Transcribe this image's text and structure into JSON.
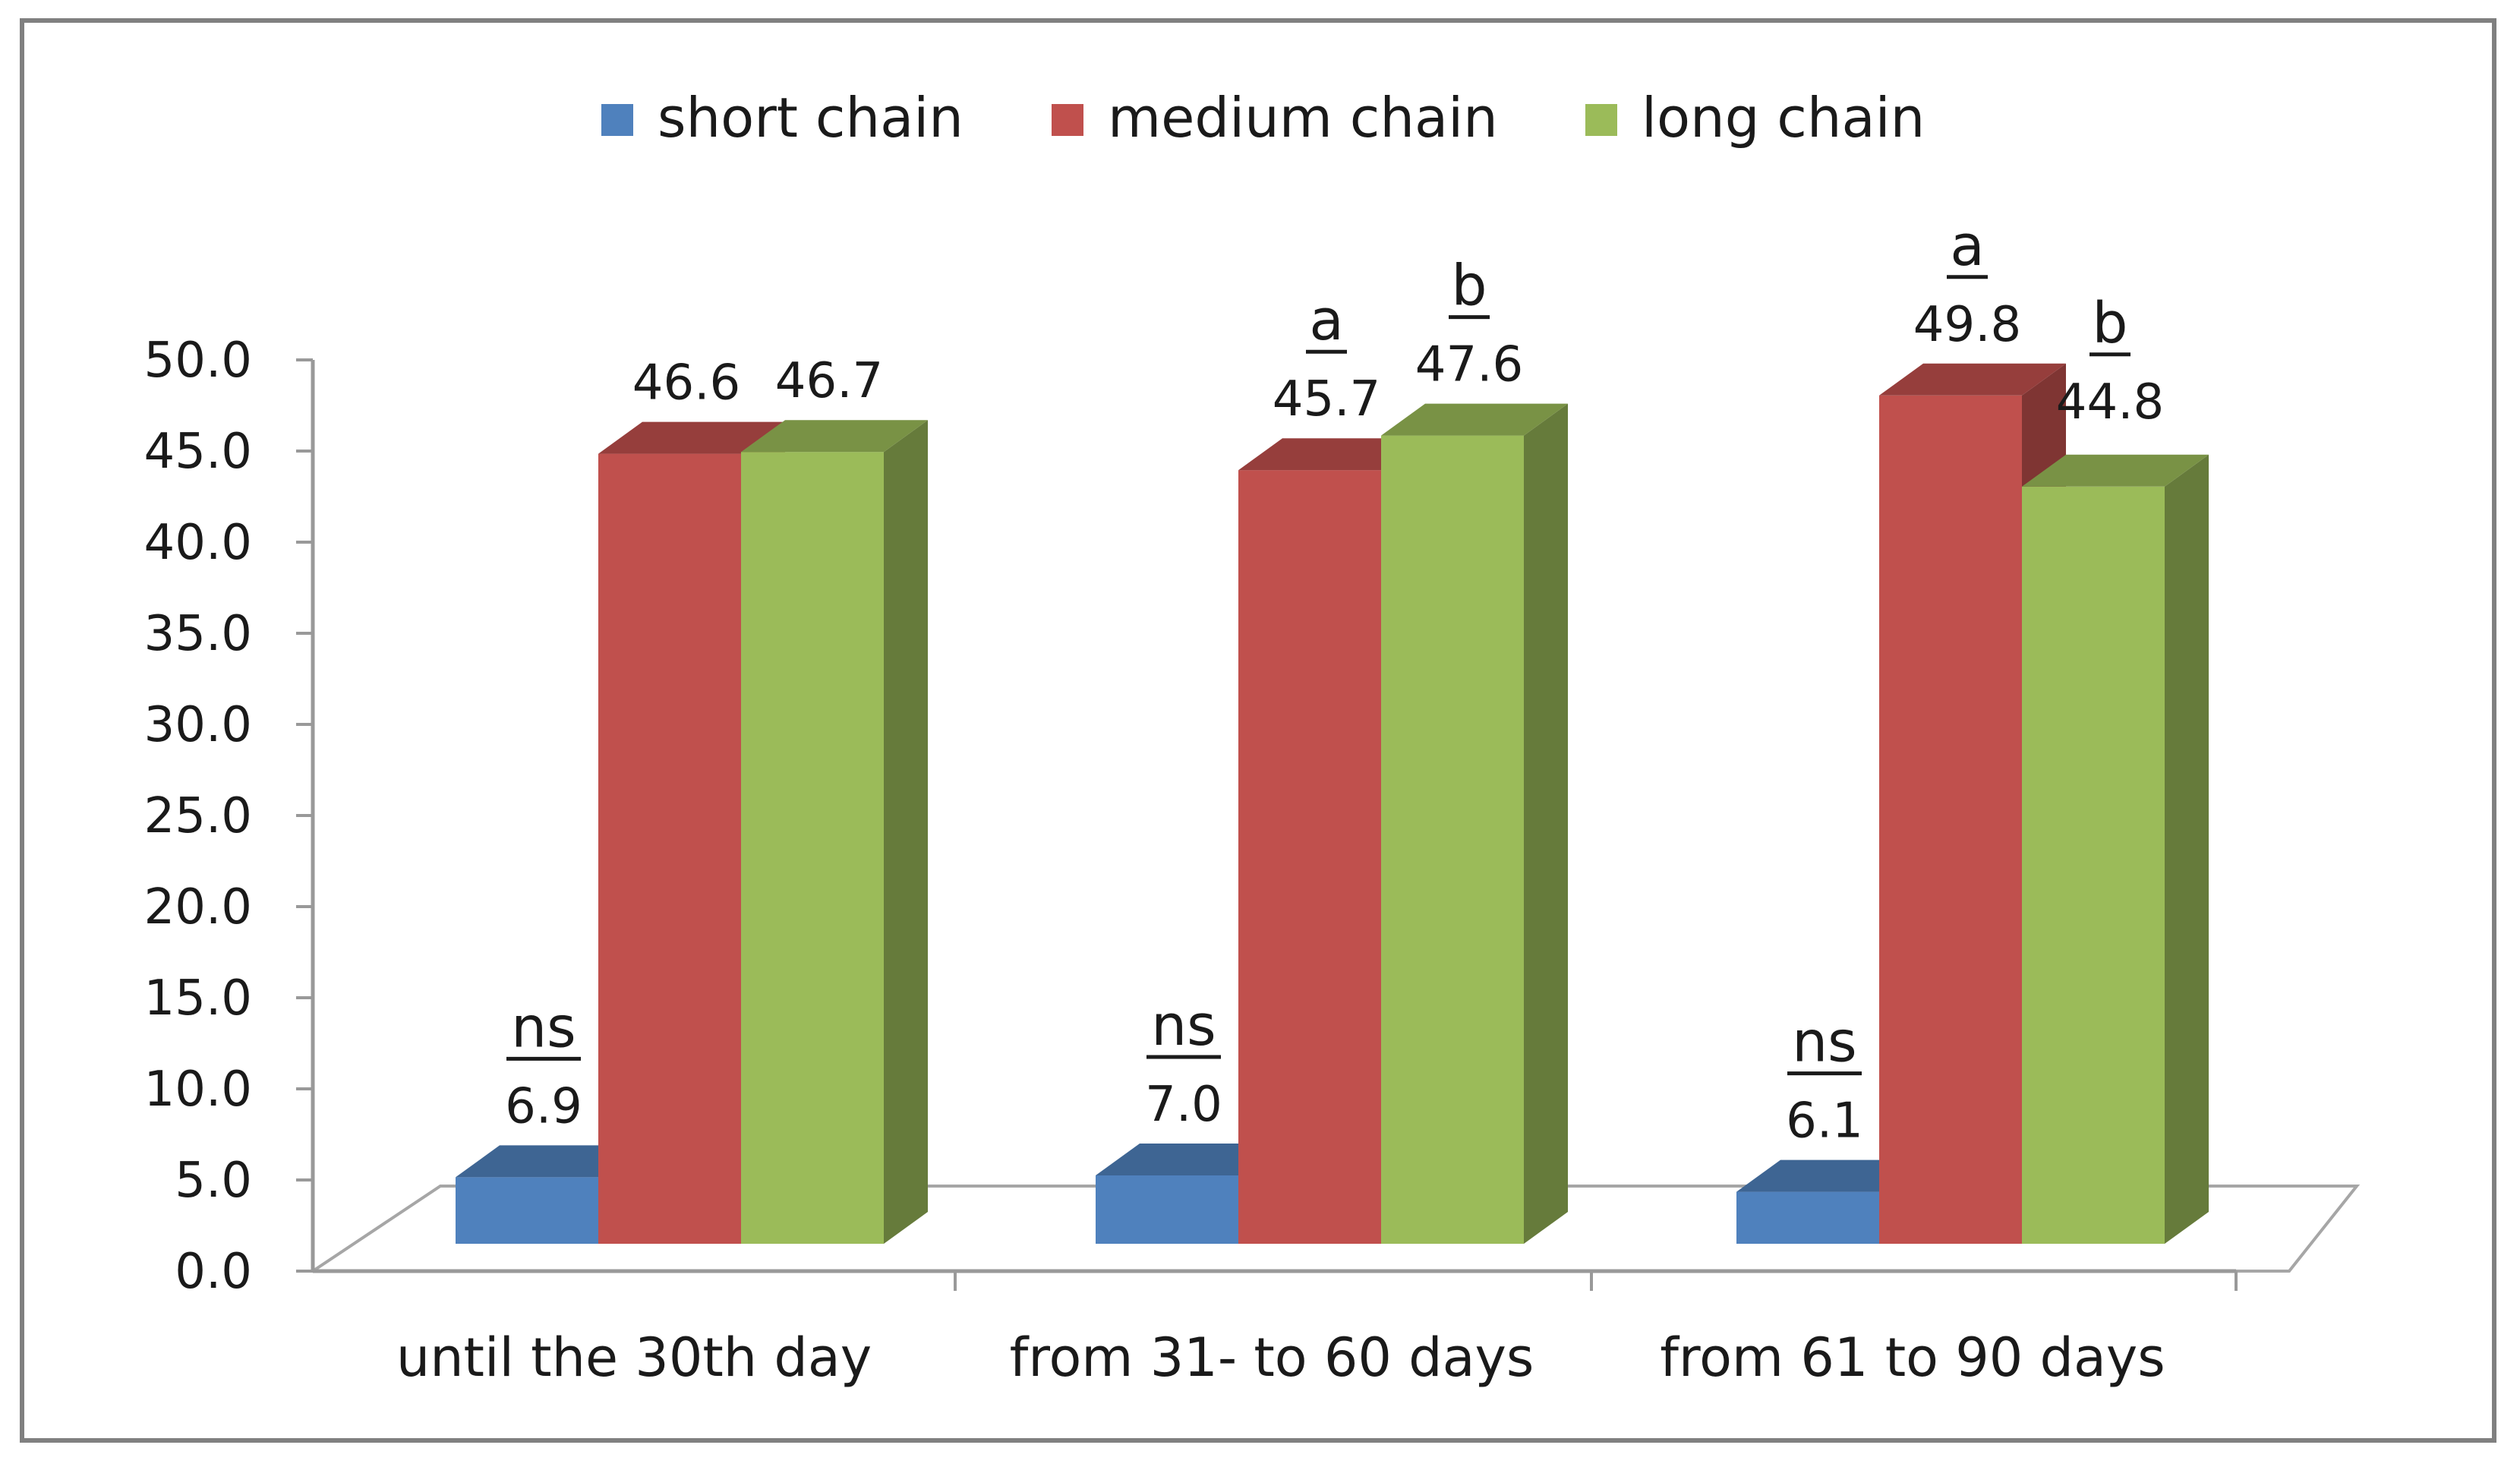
{
  "chart_data": {
    "type": "bar",
    "style": "3d-clustered",
    "categories": [
      "until the 30th day",
      "from 31- to 60 days",
      "from 61 to 90 days"
    ],
    "series": [
      {
        "name": "short chain",
        "color": "#4f81bd",
        "values": [
          6.9,
          7.0,
          6.1
        ]
      },
      {
        "name": "medium chain",
        "color": "#c0504d",
        "values": [
          46.6,
          45.7,
          49.8
        ]
      },
      {
        "name": "long chain",
        "color": "#9bbb59",
        "values": [
          46.7,
          47.6,
          44.8
        ]
      }
    ],
    "value_labels": [
      [
        "6.9",
        "46.6",
        "46.7"
      ],
      [
        "7.0",
        "45.7",
        "47.6"
      ],
      [
        "6.1",
        "49.8",
        "44.8"
      ]
    ],
    "annotations": [
      [
        "ns",
        "",
        ""
      ],
      [
        "ns",
        "a",
        "b"
      ],
      [
        "ns",
        "a",
        "b"
      ]
    ],
    "y_ticks": [
      "0.0",
      "5.0",
      "10.0",
      "15.0",
      "20.0",
      "25.0",
      "30.0",
      "35.0",
      "40.0",
      "45.0",
      "50.0"
    ],
    "ylim": [
      0,
      50
    ],
    "legend_position": "top",
    "grid": false
  }
}
